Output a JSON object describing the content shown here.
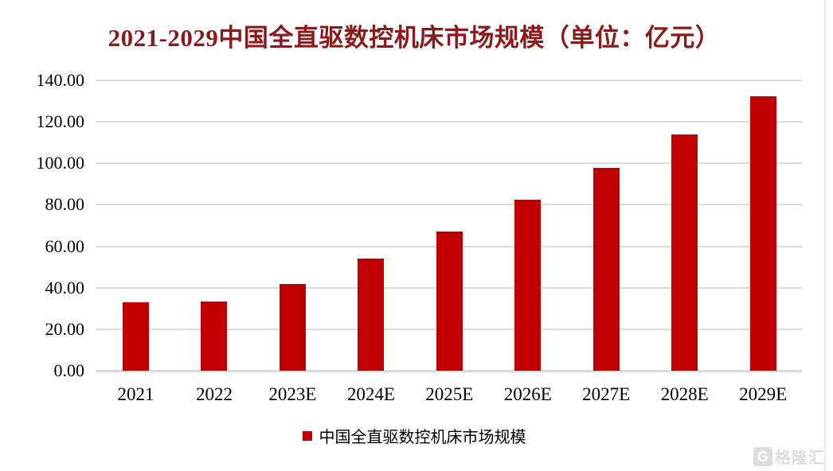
{
  "page": {
    "background_color": "#ffffff",
    "right_border_color": "#ececec"
  },
  "chart_data": {
    "type": "bar",
    "title": "2021-2029中国全直驱数控机床市场规模（单位：亿元）",
    "title_color": "#8b1a1a",
    "categories": [
      "2021",
      "2022",
      "2023E",
      "2024E",
      "2025E",
      "2026E",
      "2027E",
      "2028E",
      "2029E"
    ],
    "values": [
      33.0,
      33.5,
      42.0,
      54.0,
      67.0,
      82.5,
      98.0,
      114.0,
      132.5
    ],
    "series_name": "中国全直驱数控机床市场规模",
    "unit": "亿元",
    "xlabel": "",
    "ylabel": "",
    "ylim": [
      0,
      140
    ],
    "ytick_step": 20,
    "ytick_labels": [
      "0.00",
      "20.00",
      "40.00",
      "60.00",
      "80.00",
      "100.00",
      "120.00",
      "140.00"
    ],
    "grid": true,
    "gridline_color": "#dcdcdc",
    "bar_color": "#c00000",
    "axis_text_color": "#000000",
    "legend_position": "bottom"
  },
  "legend": {
    "label": "中国全直驱数控机床市场规模",
    "marker_color": "#c00000"
  },
  "watermark": {
    "logo_letter": "G",
    "text": "格隆汇"
  }
}
